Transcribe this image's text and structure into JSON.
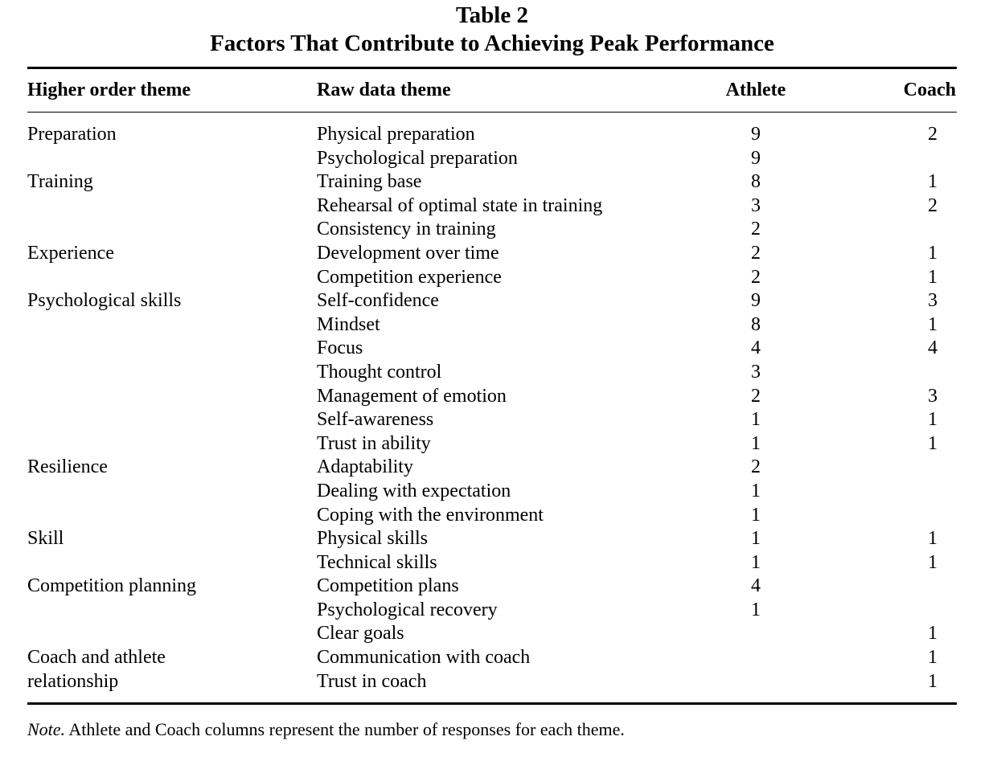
{
  "table": {
    "number": "Table 2",
    "title": "Factors That Contribute to Achieving Peak Performance",
    "headers": {
      "higher": "Higher order theme",
      "raw": "Raw data theme",
      "athlete": "Athlete",
      "coach": "Coach"
    },
    "rows": [
      {
        "higher": "Preparation",
        "raw": "Physical preparation",
        "athlete": "9",
        "coach": "2"
      },
      {
        "higher": "",
        "raw": "Psychological preparation",
        "athlete": "9",
        "coach": ""
      },
      {
        "higher": "Training",
        "raw": "Training base",
        "athlete": "8",
        "coach": "1"
      },
      {
        "higher": "",
        "raw": "Rehearsal of optimal state in training",
        "athlete": "3",
        "coach": "2"
      },
      {
        "higher": "",
        "raw": "Consistency in training",
        "athlete": "2",
        "coach": ""
      },
      {
        "higher": "Experience",
        "raw": "Development over time",
        "athlete": "2",
        "coach": "1"
      },
      {
        "higher": "",
        "raw": "Competition experience",
        "athlete": "2",
        "coach": "1"
      },
      {
        "higher": "Psychological skills",
        "raw": "Self-confidence",
        "athlete": "9",
        "coach": "3"
      },
      {
        "higher": "",
        "raw": "Mindset",
        "athlete": "8",
        "coach": "1"
      },
      {
        "higher": "",
        "raw": "Focus",
        "athlete": "4",
        "coach": "4"
      },
      {
        "higher": "",
        "raw": "Thought control",
        "athlete": "3",
        "coach": ""
      },
      {
        "higher": "",
        "raw": "Management of emotion",
        "athlete": "2",
        "coach": "3"
      },
      {
        "higher": "",
        "raw": "Self-awareness",
        "athlete": "1",
        "coach": "1"
      },
      {
        "higher": "",
        "raw": "Trust in ability",
        "athlete": "1",
        "coach": "1"
      },
      {
        "higher": "Resilience",
        "raw": "Adaptability",
        "athlete": "2",
        "coach": ""
      },
      {
        "higher": "",
        "raw": "Dealing with expectation",
        "athlete": "1",
        "coach": ""
      },
      {
        "higher": "",
        "raw": "Coping with the environment",
        "athlete": "1",
        "coach": ""
      },
      {
        "higher": "Skill",
        "raw": "Physical skills",
        "athlete": "1",
        "coach": "1"
      },
      {
        "higher": "",
        "raw": "Technical skills",
        "athlete": "1",
        "coach": "1"
      },
      {
        "higher": "Competition planning",
        "raw": "Competition plans",
        "athlete": "4",
        "coach": ""
      },
      {
        "higher": "",
        "raw": "Psychological recovery",
        "athlete": "1",
        "coach": ""
      },
      {
        "higher": "",
        "raw": "Clear goals",
        "athlete": "",
        "coach": "1"
      },
      {
        "higher": "Coach and athlete",
        "raw": "Communication with coach",
        "athlete": "",
        "coach": "1"
      },
      {
        "higher": "relationship",
        "raw": "Trust in coach",
        "athlete": "",
        "coach": "1"
      }
    ],
    "note_label": "Note.",
    "note_text": " Athlete and Coach columns represent the number of responses for each theme."
  }
}
